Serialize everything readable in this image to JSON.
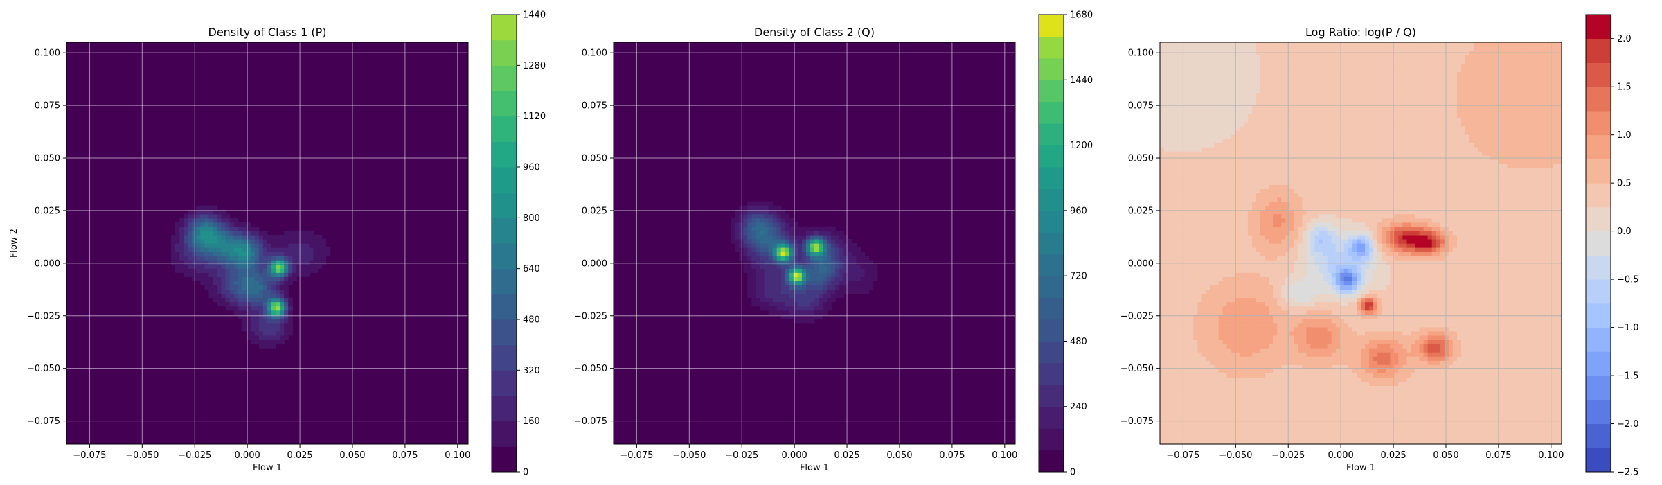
{
  "chart_data": [
    {
      "type": "heatmap",
      "title": "Density of Class 1 (P)",
      "xlabel": "Flow 1",
      "ylabel": "Flow 2",
      "xlim": [
        -0.086,
        0.105
      ],
      "ylim": [
        -0.086,
        0.105
      ],
      "xticks": [
        -0.075,
        -0.05,
        -0.025,
        0.0,
        0.025,
        0.05,
        0.075,
        0.1
      ],
      "xtick_labels": [
        "−0.075",
        "−0.050",
        "−0.025",
        "0.000",
        "0.025",
        "0.050",
        "0.075",
        "0.100"
      ],
      "yticks": [
        -0.075,
        -0.05,
        -0.025,
        0.0,
        0.025,
        0.05,
        0.075,
        0.1
      ],
      "ytick_labels": [
        "−0.075",
        "−0.050",
        "−0.025",
        "0.000",
        "0.025",
        "0.050",
        "0.075",
        "0.100"
      ],
      "grid": true,
      "colormap": "viridis",
      "background_color": "#440154",
      "colorbar": {
        "vmin": 0,
        "vmax": 1440,
        "ticks": [
          0,
          160,
          320,
          480,
          640,
          800,
          960,
          1120,
          1280,
          1440
        ],
        "levels": 18,
        "colors": [
          "#440154",
          "#471365",
          "#482475",
          "#463480",
          "#414487",
          "#3b528b",
          "#355f8d",
          "#2f6c8e",
          "#2a788e",
          "#25848e",
          "#21918c",
          "#1e9c89",
          "#22a884",
          "#2fb47c",
          "#44bf70",
          "#5ec962",
          "#7ad151",
          "#9bd93c"
        ]
      },
      "blobs": [
        {
          "x": -0.02,
          "y": 0.015,
          "sx": 0.006,
          "sy": 0.006,
          "v": 650
        },
        {
          "x": -0.01,
          "y": 0.008,
          "sx": 0.007,
          "sy": 0.006,
          "v": 520
        },
        {
          "x": 0.0,
          "y": 0.005,
          "sx": 0.006,
          "sy": 0.006,
          "v": 560
        },
        {
          "x": 0.015,
          "y": -0.002,
          "sx": 0.003,
          "sy": 0.003,
          "v": 1200
        },
        {
          "x": 0.014,
          "y": -0.021,
          "sx": 0.003,
          "sy": 0.003,
          "v": 1250
        },
        {
          "x": 0.005,
          "y": -0.012,
          "sx": 0.007,
          "sy": 0.006,
          "v": 450
        },
        {
          "x": -0.005,
          "y": -0.01,
          "sx": 0.008,
          "sy": 0.007,
          "v": 320
        },
        {
          "x": 0.01,
          "y": -0.03,
          "sx": 0.007,
          "sy": 0.006,
          "v": 300
        },
        {
          "x": -0.025,
          "y": 0.005,
          "sx": 0.008,
          "sy": 0.008,
          "v": 240
        },
        {
          "x": 0.025,
          "y": 0.005,
          "sx": 0.01,
          "sy": 0.008,
          "v": 200
        }
      ]
    },
    {
      "type": "heatmap",
      "title": "Density of Class 2 (Q)",
      "xlabel": "Flow 1",
      "ylabel": "",
      "xlim": [
        -0.086,
        0.105
      ],
      "ylim": [
        -0.086,
        0.105
      ],
      "xticks": [
        -0.075,
        -0.05,
        -0.025,
        0.0,
        0.025,
        0.05,
        0.075,
        0.1
      ],
      "xtick_labels": [
        "−0.075",
        "−0.050",
        "−0.025",
        "0.000",
        "0.025",
        "0.050",
        "0.075",
        "0.100"
      ],
      "yticks": [
        -0.075,
        -0.05,
        -0.025,
        0.0,
        0.025,
        0.05,
        0.075,
        0.1
      ],
      "ytick_labels": [
        "−0.075",
        "−0.050",
        "−0.025",
        "0.000",
        "0.025",
        "0.050",
        "0.075",
        "0.100"
      ],
      "grid": true,
      "colormap": "viridis",
      "background_color": "#440154",
      "colorbar": {
        "vmin": 0,
        "vmax": 1680,
        "ticks": [
          0,
          240,
          480,
          720,
          960,
          1200,
          1440,
          1680
        ],
        "levels": 21,
        "colors": [
          "#440154",
          "#471063",
          "#481d6f",
          "#472c7a",
          "#443a83",
          "#3f4788",
          "#3a548c",
          "#355e8d",
          "#31688e",
          "#2c728e",
          "#287c8e",
          "#24868e",
          "#21908d",
          "#1f9a8a",
          "#22a785",
          "#2cb17e",
          "#3dbc74",
          "#56c667",
          "#75d054",
          "#95d840",
          "#dde318"
        ]
      },
      "blobs": [
        {
          "x": -0.012,
          "y": 0.01,
          "sx": 0.008,
          "sy": 0.008,
          "v": 520
        },
        {
          "x": -0.005,
          "y": 0.005,
          "sx": 0.003,
          "sy": 0.003,
          "v": 1400
        },
        {
          "x": 0.01,
          "y": 0.008,
          "sx": 0.003,
          "sy": 0.003,
          "v": 1300
        },
        {
          "x": 0.001,
          "y": -0.006,
          "sx": 0.003,
          "sy": 0.003,
          "v": 1500
        },
        {
          "x": 0.012,
          "y": -0.005,
          "sx": 0.006,
          "sy": 0.006,
          "v": 480
        },
        {
          "x": -0.018,
          "y": 0.018,
          "sx": 0.006,
          "sy": 0.006,
          "v": 420
        },
        {
          "x": 0.015,
          "y": 0.005,
          "sx": 0.007,
          "sy": 0.007,
          "v": 380
        },
        {
          "x": 0.005,
          "y": -0.018,
          "sx": 0.007,
          "sy": 0.006,
          "v": 300
        },
        {
          "x": -0.01,
          "y": -0.012,
          "sx": 0.008,
          "sy": 0.007,
          "v": 280
        },
        {
          "x": 0.03,
          "y": -0.005,
          "sx": 0.008,
          "sy": 0.008,
          "v": 160
        }
      ]
    },
    {
      "type": "heatmap",
      "title": "Log Ratio: log(P / Q)",
      "xlabel": "Flow 1",
      "ylabel": "",
      "xlim": [
        -0.086,
        0.105
      ],
      "ylim": [
        -0.086,
        0.105
      ],
      "xticks": [
        -0.075,
        -0.05,
        -0.025,
        0.0,
        0.025,
        0.05,
        0.075,
        0.1
      ],
      "xtick_labels": [
        "−0.075",
        "−0.050",
        "−0.025",
        "0.000",
        "0.025",
        "0.050",
        "0.075",
        "0.100"
      ],
      "yticks": [
        -0.075,
        -0.05,
        -0.025,
        0.0,
        0.025,
        0.05,
        0.075,
        0.1
      ],
      "ytick_labels": [
        "−0.075",
        "−0.050",
        "−0.025",
        "0.000",
        "0.025",
        "0.050",
        "0.075",
        "0.100"
      ],
      "grid": true,
      "grid_color": "#b0b0b0",
      "colormap": "coolwarm",
      "background_color": "#f2c4ad",
      "colorbar": {
        "vmin": -2.5,
        "vmax": 2.25,
        "ticks": [
          -2.5,
          -2.0,
          -1.5,
          -1.0,
          -0.5,
          0.0,
          0.5,
          1.0,
          1.5,
          2.0
        ],
        "tick_labels": [
          "−2.5",
          "−2.0",
          "−1.5",
          "−1.0",
          "−0.5",
          "0.0",
          "0.5",
          "1.0",
          "1.5",
          "2.0"
        ],
        "levels": 19,
        "colors": [
          "#3b4cc0",
          "#4a63d3",
          "#5b7ae5",
          "#6c8ff1",
          "#7fa2fa",
          "#92b4fe",
          "#a6c4fe",
          "#b8d0f9",
          "#cad8ef",
          "#dddcdc",
          "#ead5c9",
          "#f3c7b1",
          "#f6b69a",
          "#f5a383",
          "#f08e6d",
          "#e67559",
          "#da5a47",
          "#cc3e36",
          "#b40426"
        ]
      },
      "regions": [
        {
          "x": 0.0,
          "y": 0.0,
          "sx": 0.012,
          "sy": 0.01,
          "v": -0.9
        },
        {
          "x": 0.003,
          "y": -0.008,
          "sx": 0.004,
          "sy": 0.004,
          "v": -1.6
        },
        {
          "x": 0.01,
          "y": 0.008,
          "sx": 0.004,
          "sy": 0.004,
          "v": -1.3
        },
        {
          "x": -0.01,
          "y": 0.012,
          "sx": 0.005,
          "sy": 0.005,
          "v": -0.8
        },
        {
          "x": -0.02,
          "y": -0.015,
          "sx": 0.006,
          "sy": 0.005,
          "v": -0.6
        },
        {
          "x": 0.03,
          "y": 0.012,
          "sx": 0.008,
          "sy": 0.005,
          "v": 1.5
        },
        {
          "x": 0.042,
          "y": 0.01,
          "sx": 0.006,
          "sy": 0.004,
          "v": 1.4
        },
        {
          "x": 0.013,
          "y": -0.02,
          "sx": 0.003,
          "sy": 0.003,
          "v": 1.7
        },
        {
          "x": 0.045,
          "y": -0.04,
          "sx": 0.006,
          "sy": 0.005,
          "v": 1.3
        },
        {
          "x": 0.02,
          "y": -0.045,
          "sx": 0.008,
          "sy": 0.007,
          "v": 1.0
        },
        {
          "x": -0.01,
          "y": -0.035,
          "sx": 0.008,
          "sy": 0.008,
          "v": 0.8
        },
        {
          "x": -0.03,
          "y": 0.02,
          "sx": 0.008,
          "sy": 0.01,
          "v": 0.7
        },
        {
          "x": -0.045,
          "y": -0.03,
          "sx": 0.015,
          "sy": 0.015,
          "v": 0.6
        },
        {
          "x": -0.075,
          "y": 0.09,
          "sx": 0.025,
          "sy": 0.025,
          "v": -0.3
        },
        {
          "x": 0.09,
          "y": 0.08,
          "sx": 0.03,
          "sy": 0.03,
          "v": 0.3
        }
      ]
    }
  ]
}
